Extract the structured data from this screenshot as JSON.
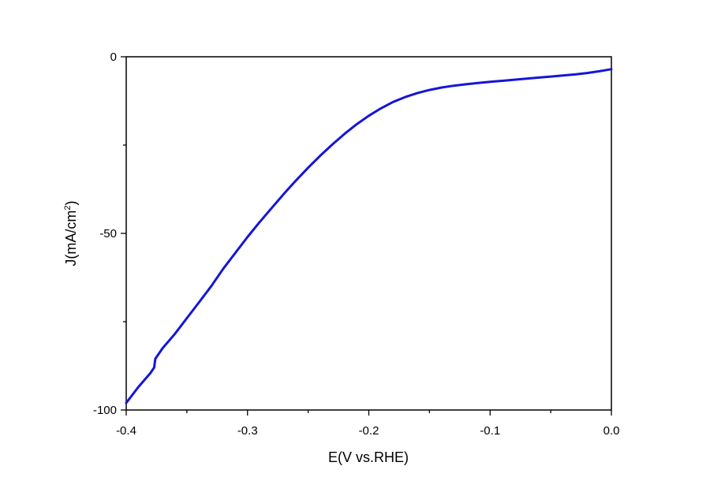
{
  "chart_data": {
    "type": "line",
    "title": "",
    "xlabel": "E(V vs.RHE)",
    "ylabel_main": "J(mA/cm",
    "ylabel_sup": "2",
    "ylabel_tail": ")",
    "xlim": [
      -0.4,
      0.0
    ],
    "ylim": [
      -100,
      0
    ],
    "x_ticks": [
      -0.4,
      -0.3,
      -0.2,
      -0.1,
      0.0
    ],
    "x_tick_labels": [
      "-0.4",
      "-0.3",
      "-0.2",
      "-0.1",
      "0.0"
    ],
    "x_minor_ticks": [
      -0.35,
      -0.25,
      -0.15,
      -0.05
    ],
    "y_ticks": [
      -100,
      -50,
      0
    ],
    "y_tick_labels": [
      "-100",
      "-50",
      "0"
    ],
    "y_minor_ticks": [
      -75,
      -25
    ],
    "grid": false,
    "series": [
      {
        "color": "#1515d8",
        "x": [
          -0.4,
          -0.39,
          -0.38,
          -0.377,
          -0.376,
          -0.37,
          -0.36,
          -0.35,
          -0.34,
          -0.33,
          -0.32,
          -0.31,
          -0.3,
          -0.29,
          -0.28,
          -0.27,
          -0.26,
          -0.25,
          -0.24,
          -0.23,
          -0.22,
          -0.21,
          -0.2,
          -0.19,
          -0.18,
          -0.17,
          -0.16,
          -0.15,
          -0.14,
          -0.13,
          -0.12,
          -0.11,
          -0.1,
          -0.09,
          -0.08,
          -0.07,
          -0.06,
          -0.05,
          -0.04,
          -0.03,
          -0.02,
          -0.01,
          0.0
        ],
        "y": [
          -98,
          -93.5,
          -89.5,
          -88,
          -85.5,
          -82.5,
          -78.5,
          -74,
          -69.5,
          -65,
          -60,
          -55.5,
          -51,
          -46.8,
          -42.8,
          -38.8,
          -35,
          -31.4,
          -28,
          -24.8,
          -21.8,
          -19.1,
          -16.7,
          -14.6,
          -12.8,
          -11.4,
          -10.3,
          -9.4,
          -8.7,
          -8.2,
          -7.8,
          -7.4,
          -7.1,
          -6.8,
          -6.5,
          -6.2,
          -5.9,
          -5.6,
          -5.3,
          -5.0,
          -4.6,
          -4.1,
          -3.5
        ]
      }
    ]
  }
}
